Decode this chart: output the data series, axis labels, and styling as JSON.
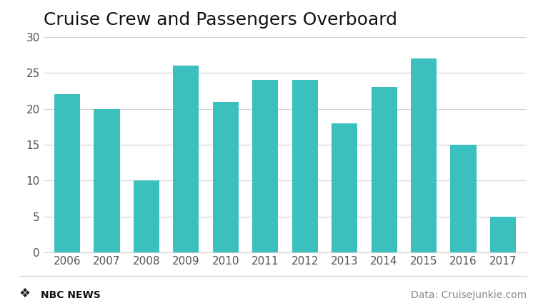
{
  "title": "Cruise Crew and Passengers Overboard",
  "categories": [
    "2006",
    "2007",
    "2008",
    "2009",
    "2010",
    "2011",
    "2012",
    "2013",
    "2014",
    "2015",
    "2016",
    "2017"
  ],
  "values": [
    22,
    20,
    10,
    26,
    21,
    24,
    24,
    18,
    23,
    27,
    15,
    5
  ],
  "bar_color": "#3BBFBF",
  "background_color": "#ffffff",
  "ylim": [
    0,
    30
  ],
  "yticks": [
    0,
    5,
    10,
    15,
    20,
    25,
    30
  ],
  "title_fontsize": 18,
  "tick_fontsize": 11,
  "footer_left": "NBC NEWS",
  "footer_right": "Data: CruiseJunkie.com",
  "footer_fontsize": 10,
  "grid_color": "#d0d0d0",
  "bar_width": 0.65
}
